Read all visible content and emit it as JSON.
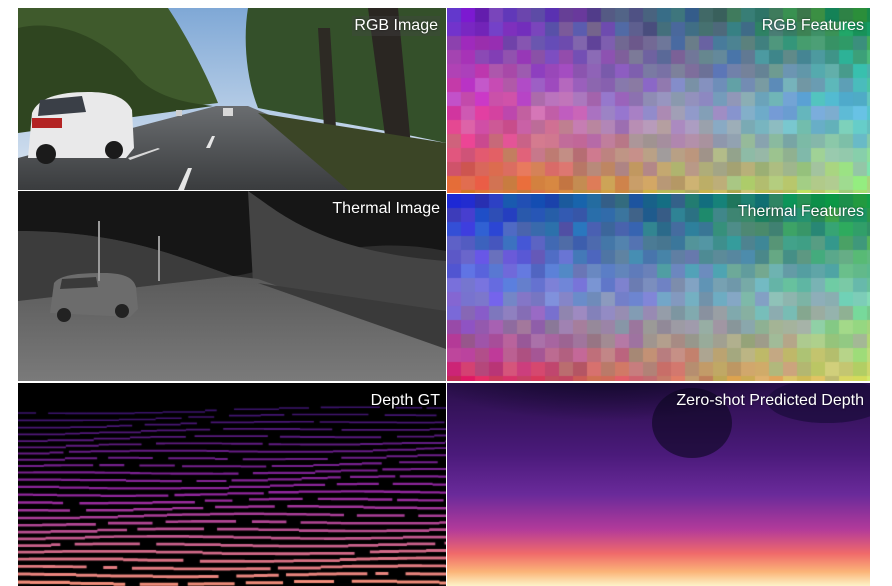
{
  "panels": {
    "rgb_image": {
      "label": "RGB Image"
    },
    "rgb_features": {
      "label": "RGB Features"
    },
    "thermal_image": {
      "label": "Thermal Image"
    },
    "thermal_features": {
      "label": "Thermal Features"
    },
    "depth_gt": {
      "label": "Depth GT"
    },
    "predicted_depth": {
      "label": "Zero-shot Predicted Depth"
    }
  }
}
